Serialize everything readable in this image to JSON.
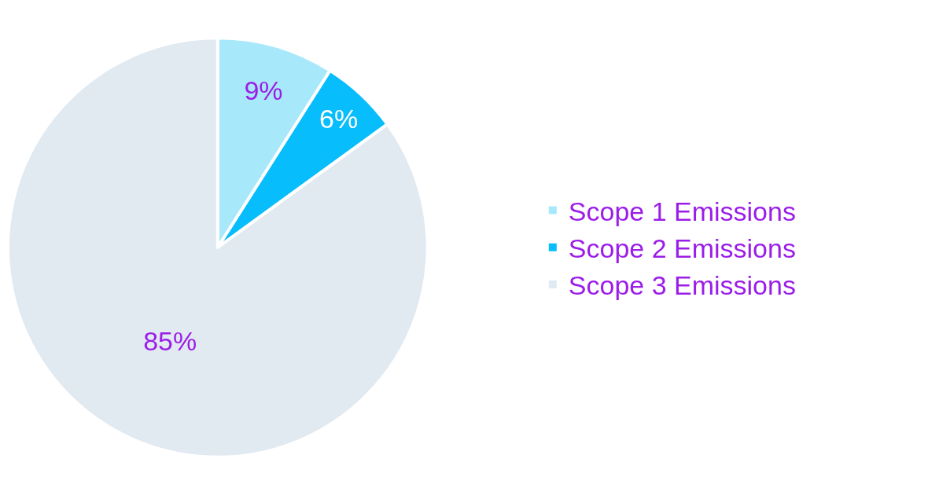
{
  "chart_data": {
    "type": "pie",
    "categories": [
      "Scope 1 Emissions",
      "Scope 2 Emissions",
      "Scope 3 Emissions"
    ],
    "values": [
      9,
      6,
      85
    ],
    "colors": [
      "#a8e8fb",
      "#08bdfc",
      "#e1e9f1"
    ],
    "value_labels": [
      "9%",
      "6%",
      "85%"
    ],
    "legend": "right"
  }
}
